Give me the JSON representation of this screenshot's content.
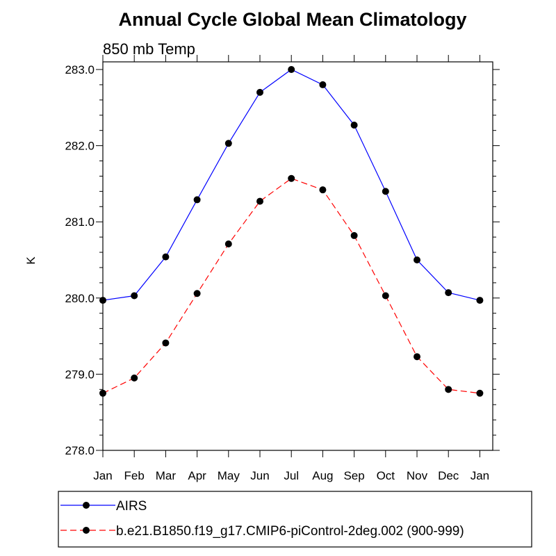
{
  "chart_data": {
    "type": "line",
    "title": "Annual Cycle Global Mean Climatology",
    "subtitle": "850 mb Temp",
    "xlabel": "",
    "ylabel": "K",
    "categories": [
      "Jan",
      "Feb",
      "Mar",
      "Apr",
      "May",
      "Jun",
      "Jul",
      "Aug",
      "Sep",
      "Oct",
      "Nov",
      "Dec",
      "Jan"
    ],
    "ylim": [
      278.0,
      283.0
    ],
    "yticks": [
      "278.0",
      "279.0",
      "280.0",
      "281.0",
      "282.0",
      "283.0"
    ],
    "grid": false,
    "legend_position": "bottom",
    "series": [
      {
        "name": "AIRS",
        "color": "#0000ff",
        "style": "solid",
        "values": [
          279.97,
          280.03,
          280.54,
          281.29,
          282.03,
          282.7,
          283.0,
          282.8,
          282.27,
          281.4,
          280.5,
          280.07,
          279.97
        ]
      },
      {
        "name": "b.e21.B1850.f19_g17.CMIP6-piControl-2deg.002 (900-999)",
        "color": "#ff0000",
        "style": "dashed",
        "values": [
          278.75,
          278.95,
          279.41,
          280.06,
          280.71,
          281.27,
          281.57,
          281.42,
          280.82,
          280.03,
          279.23,
          278.8,
          278.75
        ]
      }
    ]
  }
}
